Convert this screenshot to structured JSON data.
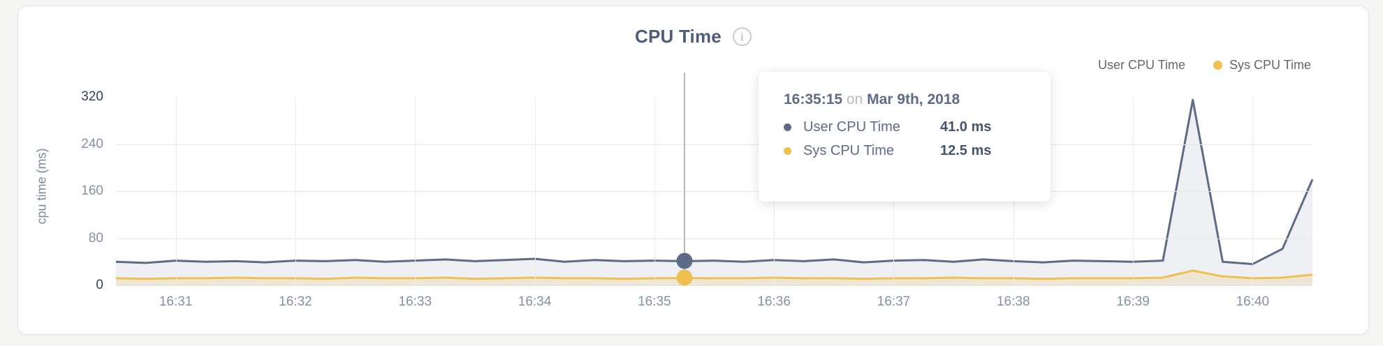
{
  "header": {
    "title": "CPU Time",
    "info_icon_glyph": "i"
  },
  "legend": {
    "items": [
      {
        "label": "User CPU Time",
        "color": "#5d6b87"
      },
      {
        "label": "Sys CPU Time",
        "color": "#efc04f"
      }
    ]
  },
  "chart_data": {
    "type": "area",
    "title": "CPU Time",
    "xlabel": "",
    "ylabel": "cpu time (ms)",
    "ylim": [
      0,
      320
    ],
    "y_ticks": [
      0,
      80,
      160,
      240,
      320
    ],
    "x_tick_labels": [
      "16:31",
      "16:32",
      "16:33",
      "16:34",
      "16:35",
      "16:36",
      "16:37",
      "16:38",
      "16:39",
      "16:40"
    ],
    "x_start": "16:30:30",
    "x_end": "16:40:30",
    "x_step_seconds": 15,
    "grid": true,
    "legend_position": "top-right",
    "series": [
      {
        "name": "User CPU Time",
        "color": "#5d6b87",
        "fill": "rgba(93,107,135,0.10)",
        "values": [
          40,
          38,
          42,
          40,
          41,
          39,
          42,
          41,
          43,
          40,
          42,
          44,
          41,
          43,
          45,
          40,
          43,
          41,
          42,
          41,
          42,
          40,
          43,
          41,
          44,
          39,
          42,
          43,
          40,
          44,
          41,
          39,
          42,
          41,
          40,
          42,
          315,
          40,
          36,
          62,
          180
        ]
      },
      {
        "name": "Sys CPU Time",
        "color": "#efc04f",
        "fill": "rgba(239,192,79,0.18)",
        "values": [
          12,
          11,
          12,
          12,
          13,
          12,
          12,
          11,
          13,
          12,
          12,
          13,
          11,
          12,
          13,
          12,
          12,
          11,
          12,
          12.5,
          12,
          12,
          13,
          12,
          12,
          11,
          12,
          12,
          13,
          12,
          12,
          11,
          12,
          12,
          12,
          13,
          25,
          15,
          12,
          13,
          18
        ]
      }
    ],
    "highlight": {
      "index": 19,
      "time": "16:35:15"
    }
  },
  "tooltip": {
    "time": "16:35:15",
    "separator": "on",
    "date": "Mar 9th, 2018",
    "rows": [
      {
        "label": "User CPU Time",
        "value": "41.0 ms",
        "color": "#5d6b87"
      },
      {
        "label": "Sys CPU Time",
        "value": "12.5 ms",
        "color": "#efc04f"
      }
    ]
  }
}
